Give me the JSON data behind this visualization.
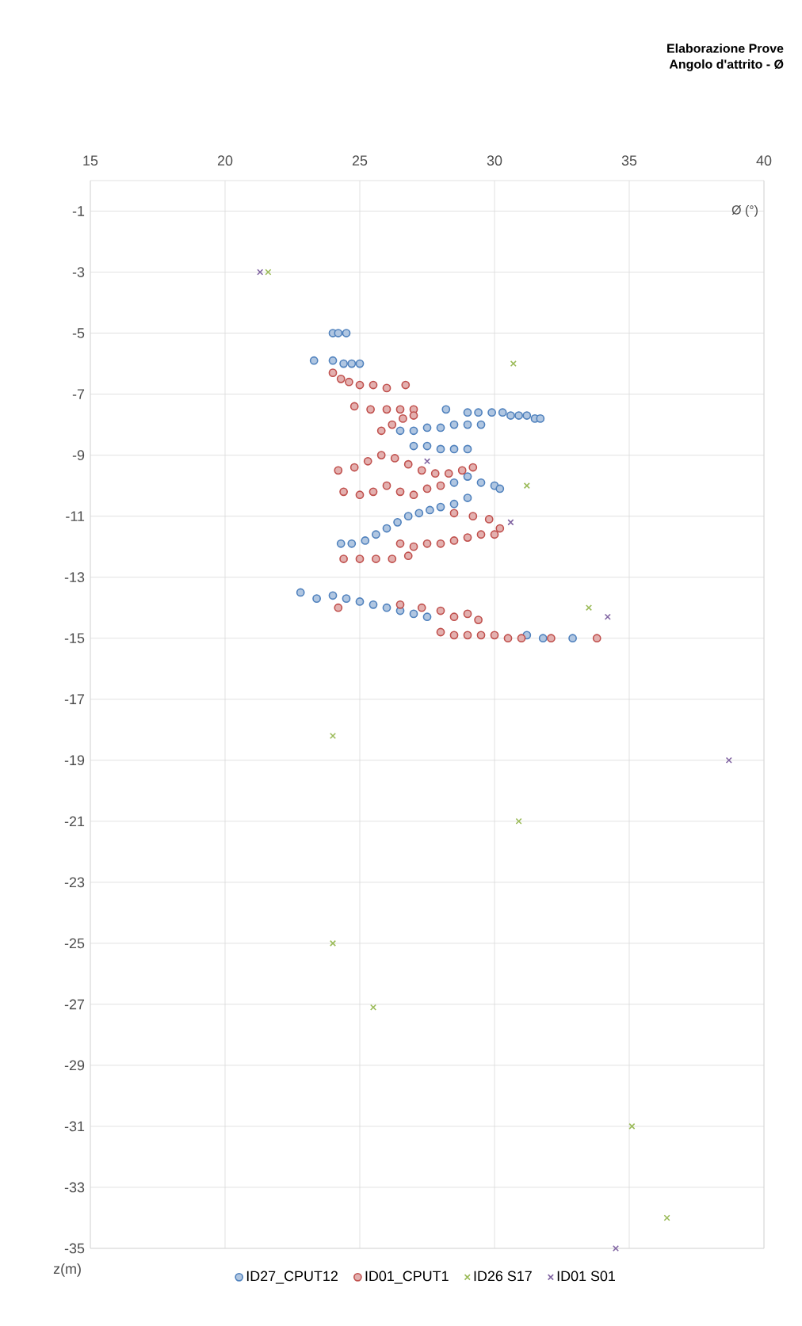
{
  "chart_data": {
    "type": "scatter",
    "title": "Elaborazione Prove",
    "subtitle": "Angolo d'attrito - Ø",
    "xlabel": "Ø (°)",
    "ylabel": "z(m)",
    "xlim": [
      15,
      40
    ],
    "xticks": [
      15,
      20,
      25,
      30,
      35,
      40
    ],
    "ylim": [
      -35,
      0
    ],
    "yticks": [
      -1,
      -3,
      -5,
      -7,
      -9,
      -11,
      -13,
      -15,
      -17,
      -19,
      -21,
      -23,
      -25,
      -27,
      -29,
      -31,
      -33,
      -35
    ],
    "grid": true,
    "legend": "bottom",
    "series": [
      {
        "name": "ID27_CPUT12",
        "color": "#4f81bd",
        "marker": "circle",
        "x": [
          24.0,
          24.2,
          24.5,
          23.3,
          24.0,
          24.4,
          24.7,
          25.0,
          28.2,
          29.0,
          29.4,
          29.9,
          30.3,
          30.6,
          30.9,
          31.2,
          31.5,
          31.7,
          26.5,
          27.0,
          27.5,
          28.0,
          28.5,
          29.0,
          29.5,
          27.0,
          27.5,
          28.0,
          28.5,
          29.0,
          28.5,
          29.0,
          29.5,
          30.0,
          30.2,
          29.0,
          28.5,
          24.3,
          24.7,
          25.2,
          25.6,
          26.0,
          26.4,
          26.8,
          27.2,
          27.6,
          28.0,
          22.8,
          23.4,
          24.0,
          24.5,
          25.0,
          25.5,
          26.0,
          26.5,
          27.0,
          27.5,
          31.2,
          31.8,
          32.9
        ],
        "values": [
          -5.0,
          -5.0,
          -5.0,
          -5.9,
          -5.9,
          -6.0,
          -6.0,
          -6.0,
          -7.5,
          -7.6,
          -7.6,
          -7.6,
          -7.6,
          -7.7,
          -7.7,
          -7.7,
          -7.8,
          -7.8,
          -8.2,
          -8.2,
          -8.1,
          -8.1,
          -8.0,
          -8.0,
          -8.0,
          -8.7,
          -8.7,
          -8.8,
          -8.8,
          -8.8,
          -9.9,
          -9.7,
          -9.9,
          -10.0,
          -10.1,
          -10.4,
          -10.6,
          -11.9,
          -11.9,
          -11.8,
          -11.6,
          -11.4,
          -11.2,
          -11.0,
          -10.9,
          -10.8,
          -10.7,
          -13.5,
          -13.7,
          -13.6,
          -13.7,
          -13.8,
          -13.9,
          -14.0,
          -14.1,
          -14.2,
          -14.3,
          -14.9,
          -15.0,
          -15.0
        ]
      },
      {
        "name": "ID01_CPUT1",
        "color": "#c0504d",
        "marker": "circle",
        "x": [
          24.0,
          24.3,
          24.6,
          25.0,
          25.5,
          26.0,
          26.7,
          24.8,
          25.4,
          26.0,
          26.5,
          27.0,
          25.8,
          26.2,
          26.6,
          27.0,
          24.2,
          24.8,
          25.3,
          25.8,
          26.3,
          26.8,
          27.3,
          27.8,
          28.3,
          28.8,
          29.2,
          24.4,
          25.0,
          25.5,
          26.0,
          26.5,
          27.0,
          27.5,
          28.0,
          28.5,
          29.2,
          29.8,
          30.2,
          26.5,
          27.0,
          27.5,
          28.0,
          28.5,
          29.0,
          29.5,
          30.0,
          24.4,
          25.0,
          25.6,
          26.2,
          26.8,
          24.2,
          26.5,
          27.3,
          28.0,
          28.5,
          29.0,
          29.4,
          28.0,
          28.5,
          29.0,
          29.5,
          30.0,
          30.5,
          31.0,
          32.1,
          33.8
        ],
        "values": [
          -6.3,
          -6.5,
          -6.6,
          -6.7,
          -6.7,
          -6.8,
          -6.7,
          -7.4,
          -7.5,
          -7.5,
          -7.5,
          -7.5,
          -8.2,
          -8.0,
          -7.8,
          -7.7,
          -9.5,
          -9.4,
          -9.2,
          -9.0,
          -9.1,
          -9.3,
          -9.5,
          -9.6,
          -9.6,
          -9.5,
          -9.4,
          -10.2,
          -10.3,
          -10.2,
          -10.0,
          -10.2,
          -10.3,
          -10.1,
          -10.0,
          -10.9,
          -11.0,
          -11.1,
          -11.4,
          -11.9,
          -12.0,
          -11.9,
          -11.9,
          -11.8,
          -11.7,
          -11.6,
          -11.6,
          -12.4,
          -12.4,
          -12.4,
          -12.4,
          -12.3,
          -14.0,
          -13.9,
          -14.0,
          -14.1,
          -14.3,
          -14.2,
          -14.4,
          -14.8,
          -14.9,
          -14.9,
          -14.9,
          -14.9,
          -15.0,
          -15.0,
          -15.0,
          -15.0
        ]
      },
      {
        "name": "ID26 S17",
        "color": "#9bbb59",
        "marker": "cross",
        "x": [
          21.6,
          30.7,
          31.2,
          33.5,
          24.0,
          30.9,
          24.0,
          25.5,
          35.1,
          36.4
        ],
        "values": [
          -3.0,
          -6.0,
          -10.0,
          -14.0,
          -18.2,
          -21.0,
          -25.0,
          -27.1,
          -31.0,
          -34.0
        ]
      },
      {
        "name": "ID01 S01",
        "color": "#8064a2",
        "marker": "cross",
        "x": [
          21.3,
          27.5,
          30.6,
          34.2,
          38.7,
          34.5
        ],
        "values": [
          -3.0,
          -9.2,
          -11.2,
          -14.3,
          -19.0,
          -35.0
        ]
      }
    ]
  }
}
